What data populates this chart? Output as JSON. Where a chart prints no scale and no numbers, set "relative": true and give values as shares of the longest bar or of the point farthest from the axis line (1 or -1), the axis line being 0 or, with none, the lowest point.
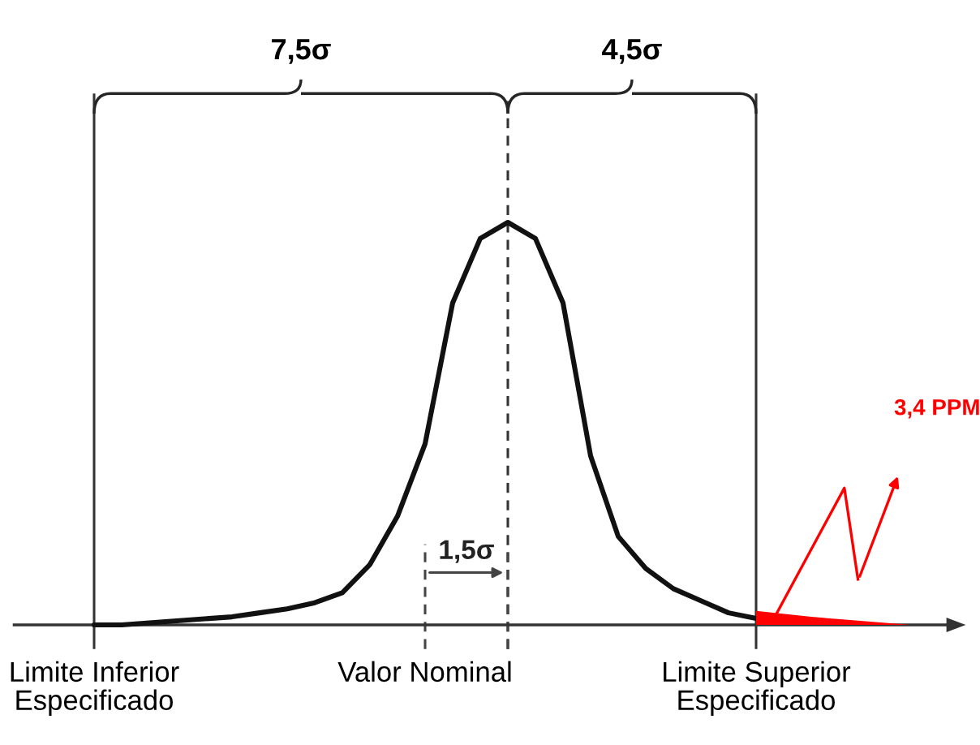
{
  "chart_data": {
    "type": "line",
    "relative": true,
    "categories": [
      null,
      null,
      null,
      null,
      null,
      null,
      null,
      null,
      null,
      null,
      null,
      null,
      null,
      null,
      null,
      null,
      null,
      null,
      null,
      null,
      null,
      null,
      null,
      null,
      null
    ],
    "series": [
      {
        "color": "#111111",
        "values": [
          0.0,
          0.0,
          0.005,
          0.01,
          0.015,
          0.02,
          0.03,
          0.04,
          0.055,
          0.08,
          0.15,
          0.27,
          0.45,
          0.8,
          0.96,
          1,
          0.96,
          0.8,
          0.42,
          0.22,
          0.14,
          0.09,
          0.06,
          0.03,
          0.016
        ]
      }
    ],
    "annotations": [
      "7,5σ",
      "4,5σ",
      "1,5σ",
      "Limite Inferior\nEspecificado",
      "Valor Nominal",
      "Limite Superior\nEspecificado",
      "3,4 PPM"
    ]
  }
}
